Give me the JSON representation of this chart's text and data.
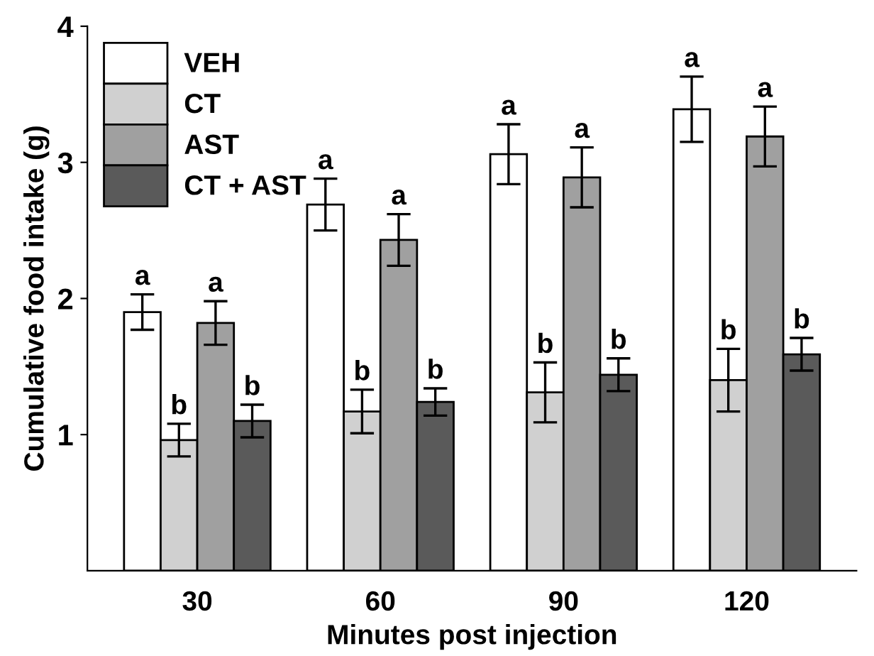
{
  "chart_data": {
    "type": "bar",
    "xlabel": "Minutes post injection",
    "ylabel": "Cumulative food intake (g)",
    "categories": [
      "30",
      "60",
      "90",
      "120"
    ],
    "series": [
      {
        "name": "VEH",
        "color": "#ffffff",
        "values": [
          1.9,
          2.69,
          3.06,
          3.39
        ],
        "errors": [
          0.13,
          0.19,
          0.22,
          0.24
        ],
        "value_labels": [
          "a",
          "a",
          "a",
          "a"
        ]
      },
      {
        "name": "CT",
        "color": "#d0d0d0",
        "values": [
          0.96,
          1.17,
          1.31,
          1.4
        ],
        "errors": [
          0.12,
          0.16,
          0.22,
          0.23
        ],
        "value_labels": [
          "b",
          "b",
          "b",
          "b"
        ]
      },
      {
        "name": "AST",
        "color": "#a0a0a0",
        "values": [
          1.82,
          2.43,
          2.89,
          3.19
        ],
        "errors": [
          0.16,
          0.19,
          0.22,
          0.22
        ],
        "value_labels": [
          "a",
          "a",
          "a",
          "a"
        ]
      },
      {
        "name": "CT + AST",
        "color": "#5a5a5a",
        "values": [
          1.1,
          1.24,
          1.44,
          1.59
        ],
        "errors": [
          0.12,
          0.1,
          0.12,
          0.12
        ],
        "value_labels": [
          "b",
          "b",
          "b",
          "b"
        ]
      }
    ],
    "ylim": [
      0,
      4
    ],
    "yticks": [
      1,
      2,
      3,
      4
    ],
    "grid": false,
    "legend": "top left"
  }
}
